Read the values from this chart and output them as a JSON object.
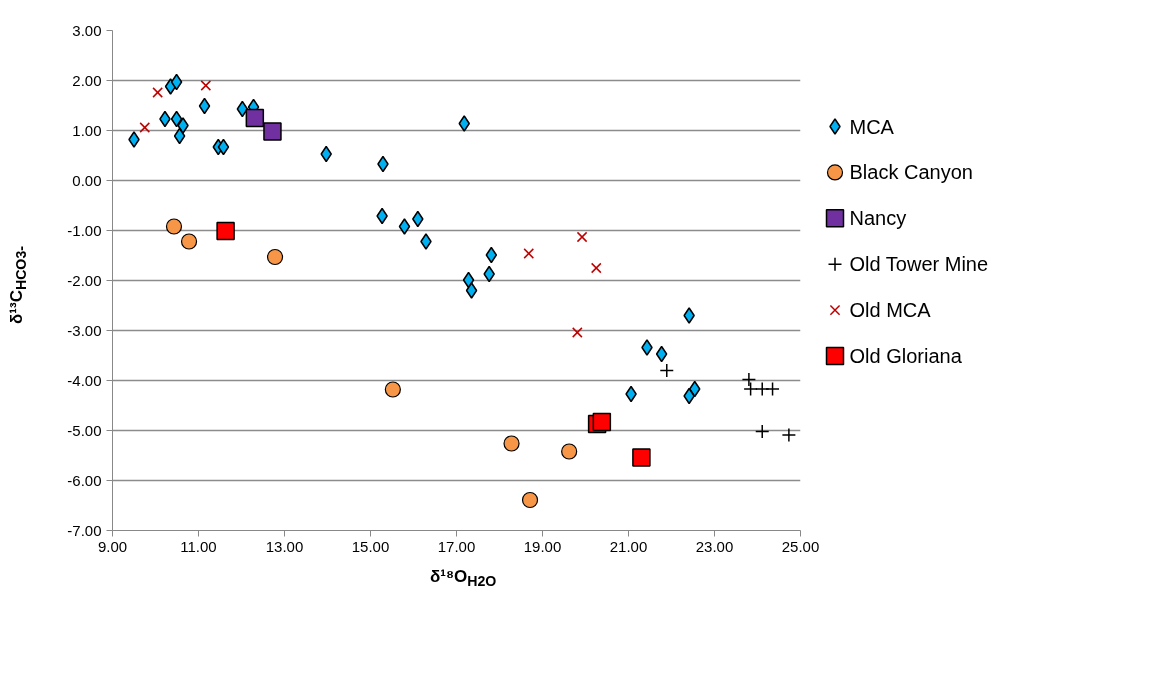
{
  "chart_data": {
    "type": "scatter",
    "xlabel": "δ¹⁸O$_{H2O}$",
    "ylabel": "δ¹³C$_{HCO3-}$",
    "xlim": [
      9,
      25
    ],
    "ylim": [
      -7,
      3
    ],
    "xticks": [
      {
        "value": 9,
        "label": "9.00"
      },
      {
        "value": 11,
        "label": "11.00"
      },
      {
        "value": 13,
        "label": "13.00"
      },
      {
        "value": 15,
        "label": "15.00"
      },
      {
        "value": 17,
        "label": "17.00"
      },
      {
        "value": 19,
        "label": "19.00"
      },
      {
        "value": 21,
        "label": "21.00"
      },
      {
        "value": 23,
        "label": "23.00"
      },
      {
        "value": 25,
        "label": "25.00"
      }
    ],
    "yticks": [
      {
        "value": -7,
        "label": "-7.00"
      },
      {
        "value": -6,
        "label": "-6.00"
      },
      {
        "value": -5,
        "label": "-5.00"
      },
      {
        "value": -4,
        "label": "-4.00"
      },
      {
        "value": -3,
        "label": "-3.00"
      },
      {
        "value": -2,
        "label": "-2.00"
      },
      {
        "value": -1,
        "label": "-1.00"
      },
      {
        "value": 0,
        "label": "0.00"
      },
      {
        "value": 1,
        "label": "1.00"
      },
      {
        "value": 2,
        "label": "2.00"
      },
      {
        "value": 3,
        "label": "3.00"
      }
    ],
    "grid": "y",
    "legend": "right",
    "series": [
      {
        "name": "MCA",
        "color": "#00b0f0",
        "marker": "diamond",
        "x": [
          9.5,
          10.22,
          10.35,
          10.49,
          10.49,
          10.64,
          10.56,
          11.14,
          11.46,
          11.58,
          12.02,
          12.28,
          13.97,
          15.29,
          15.27,
          15.79,
          16.1,
          16.29,
          17.18,
          17.81,
          17.76,
          17.28,
          17.35,
          22.41,
          21.43,
          21.77,
          21.06,
          22.54,
          22.41
        ],
        "values": [
          0.82,
          1.23,
          1.88,
          1.97,
          1.23,
          1.1,
          0.89,
          1.49,
          0.67,
          0.67,
          1.43,
          1.47,
          0.53,
          0.33,
          -0.71,
          -0.92,
          -0.77,
          -1.22,
          1.14,
          -1.49,
          -1.87,
          -1.99,
          -2.2,
          -2.7,
          -3.34,
          -3.47,
          -4.27,
          -4.17,
          -4.31
        ]
      },
      {
        "name": "Black Canyon",
        "color": "#f79646",
        "marker": "circle",
        "x": [
          10.43,
          10.78,
          12.78,
          15.52,
          18.28,
          19.62,
          18.71
        ],
        "values": [
          -0.92,
          -1.22,
          -1.53,
          -4.18,
          -5.26,
          -5.42,
          -6.39
        ]
      },
      {
        "name": "Nancy",
        "color": "#7030a0",
        "marker": "square",
        "x": [
          12.31,
          12.72
        ],
        "values": [
          1.25,
          0.98
        ]
      },
      {
        "name": "Old Tower Mine",
        "color": "#000000",
        "marker": "cross",
        "x": [
          21.89,
          23.8,
          23.84,
          24.11,
          24.35,
          24.11,
          24.73
        ],
        "values": [
          -3.8,
          -3.98,
          -4.17,
          -4.17,
          -4.17,
          -5.02,
          -5.09
        ]
      },
      {
        "name": "Old MCA",
        "color": "#c00000",
        "marker": "x",
        "x": [
          9.75,
          10.05,
          11.17,
          18.68,
          19.92,
          20.25,
          19.81
        ],
        "values": [
          1.06,
          1.76,
          1.9,
          -1.46,
          -1.13,
          -1.75,
          -3.04
        ]
      },
      {
        "name": "Old Gloriana",
        "color": "#ff0000",
        "marker": "square",
        "x": [
          11.63,
          20.27,
          20.38,
          21.3
        ],
        "values": [
          -1.01,
          -4.87,
          -4.83,
          -5.54
        ]
      }
    ]
  }
}
